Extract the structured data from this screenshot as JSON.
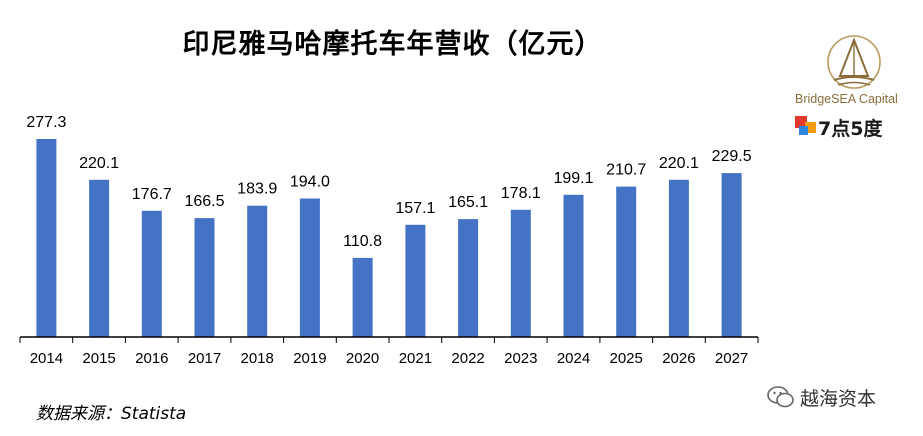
{
  "chart_data": {
    "type": "bar",
    "title": "印尼雅马哈摩托车年营收（亿元）",
    "categories": [
      "2014",
      "2015",
      "2016",
      "2017",
      "2018",
      "2019",
      "2020",
      "2021",
      "2022",
      "2023",
      "2024",
      "2025",
      "2026",
      "2027"
    ],
    "values": [
      277.3,
      220.1,
      176.7,
      166.5,
      183.9,
      194.0,
      110.8,
      157.1,
      165.1,
      178.1,
      199.1,
      210.7,
      220.1,
      229.5
    ],
    "value_labels": [
      "277.3",
      "220.1",
      "176.7",
      "166.5",
      "183.9",
      "194.0",
      "110.8",
      "157.1",
      "165.1",
      "178.1",
      "199.1",
      "210.7",
      "220.1",
      "229.5"
    ],
    "xlabel": "",
    "ylabel": "",
    "ylim": [
      0,
      277.3
    ],
    "grid": false,
    "bar_color": "#4472C4"
  },
  "source": "数据来源：Statista",
  "branding": {
    "bridgesea": "BridgeSEA Capital",
    "seven_five": "7点5度",
    "wechat_account": "越海资本"
  }
}
